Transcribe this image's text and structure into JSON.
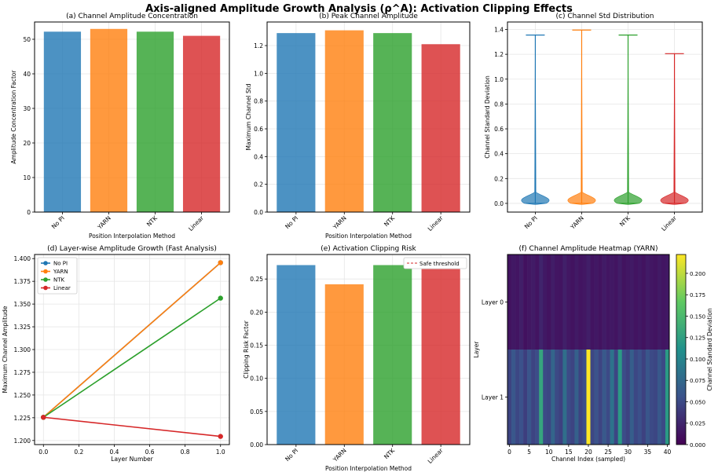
{
  "figure_title": "Axis-aligned Amplitude Growth Analysis (ρ^A): Activation Clipping Effects",
  "colors": {
    "No PI": "#1f77b4",
    "YARN": "#ff7f0e",
    "NTK": "#2ca02c",
    "Linear": "#d62728"
  },
  "chart_data": [
    {
      "id": "a",
      "type": "bar",
      "title": "(a) Channel Amplitude Concentration",
      "xlabel": "Position Interpolation Method",
      "ylabel": "Amplitude Concentration Factor",
      "categories": [
        "No PI",
        "YARN",
        "NTK",
        "Linear"
      ],
      "values": [
        52.2,
        53.0,
        52.2,
        51.0
      ],
      "ylim": [
        0,
        55
      ],
      "yticks": [
        0,
        10,
        20,
        30,
        40,
        50
      ],
      "ytick_labels": [
        "0",
        "10",
        "20",
        "30",
        "40",
        "50"
      ]
    },
    {
      "id": "b",
      "type": "bar",
      "title": "(b) Peak Channel Amplitude",
      "xlabel": "Position Interpolation Method",
      "ylabel": "Maximum Channel Std",
      "categories": [
        "No PI",
        "YARN",
        "NTK",
        "Linear"
      ],
      "values": [
        1.29,
        1.31,
        1.29,
        1.21
      ],
      "ylim": [
        0,
        1.37
      ],
      "yticks": [
        0,
        0.2,
        0.4,
        0.6,
        0.8,
        1.0,
        1.2
      ],
      "ytick_labels": [
        "0.0",
        "0.2",
        "0.4",
        "0.6",
        "0.8",
        "1.0",
        "1.2"
      ]
    },
    {
      "id": "c",
      "type": "violin",
      "title": "(c) Channel Std Distribution",
      "ylabel": "Channel Standard Deviation",
      "categories": [
        "No PI",
        "YARN",
        "NTK",
        "Linear"
      ],
      "max_values": [
        1.355,
        1.395,
        1.355,
        1.205
      ],
      "min_values": [
        0.0,
        0.0,
        0.0,
        0.0
      ],
      "median_values": [
        0.035,
        0.035,
        0.035,
        0.035
      ],
      "ylim": [
        -0.07,
        1.46
      ],
      "yticks": [
        0,
        0.2,
        0.4,
        0.6,
        0.8,
        1.0,
        1.2,
        1.4
      ],
      "ytick_labels": [
        "0.0",
        "0.2",
        "0.4",
        "0.6",
        "0.8",
        "1.0",
        "1.2",
        "1.4"
      ]
    },
    {
      "id": "d",
      "type": "line",
      "title": "(d) Layer-wise Amplitude Growth (Fast Analysis)",
      "xlabel": "Layer Number",
      "ylabel": "Maximum Channel Amplitude",
      "x": [
        0,
        1
      ],
      "series": [
        {
          "name": "No PI",
          "values": [
            1.2255,
            1.3955
          ]
        },
        {
          "name": "YARN",
          "values": [
            1.2255,
            1.3955
          ]
        },
        {
          "name": "NTK",
          "values": [
            1.2255,
            1.3565
          ]
        },
        {
          "name": "Linear",
          "values": [
            1.2255,
            1.2045
          ]
        }
      ],
      "xlim": [
        -0.05,
        1.05
      ],
      "ylim": [
        1.1955,
        1.4045
      ],
      "xticks": [
        0,
        0.2,
        0.4,
        0.6,
        0.8,
        1.0
      ],
      "xtick_labels": [
        "0.0",
        "0.2",
        "0.4",
        "0.6",
        "0.8",
        "1.0"
      ],
      "yticks": [
        1.2,
        1.225,
        1.25,
        1.275,
        1.3,
        1.325,
        1.35,
        1.375,
        1.4
      ],
      "ytick_labels": [
        "1.200",
        "1.225",
        "1.250",
        "1.275",
        "1.300",
        "1.325",
        "1.350",
        "1.375",
        "1.400"
      ],
      "legend": "top-left"
    },
    {
      "id": "e",
      "type": "bar",
      "title": "(e) Activation Clipping Risk",
      "xlabel": "Position Interpolation Method",
      "ylabel": "Clipping Risk Factor",
      "categories": [
        "No PI",
        "YARN",
        "NTK",
        "Linear"
      ],
      "values": [
        0.271,
        0.242,
        0.271,
        0.265
      ],
      "ylim": [
        0,
        0.287
      ],
      "yticks": [
        0,
        0.05,
        0.1,
        0.15,
        0.2,
        0.25
      ],
      "ytick_labels": [
        "0.00",
        "0.05",
        "0.10",
        "0.15",
        "0.20",
        "0.25"
      ],
      "threshold_label": "Safe threshold",
      "legend": "top-right"
    },
    {
      "id": "f",
      "type": "heatmap",
      "title": "(f) Channel Amplitude Heatmap (YARN)",
      "xlabel": "Channel Index (sampled)",
      "ylabel": "Layer",
      "rows": [
        "Layer 0",
        "Layer 1"
      ],
      "xticks": [
        0,
        5,
        10,
        15,
        20,
        25,
        30,
        35,
        40
      ],
      "xtick_labels": [
        "0",
        "5",
        "10",
        "15",
        "20",
        "25",
        "30",
        "35",
        "40"
      ],
      "colorbar_label": "Channel Standard Deviation",
      "colorbar_ticks": [
        0,
        0.025,
        0.05,
        0.075,
        0.1,
        0.125,
        0.15,
        0.175,
        0.2
      ],
      "colorbar_tick_labels": [
        "0.000",
        "0.025",
        "0.050",
        "0.075",
        "0.100",
        "0.125",
        "0.150",
        "0.175",
        "0.200"
      ],
      "vmax": 0.222,
      "values": [
        [
          0.012,
          0.016,
          0.014,
          0.02,
          0.011,
          0.015,
          0.018,
          0.013,
          0.024,
          0.016,
          0.012,
          0.019,
          0.014,
          0.013,
          0.021,
          0.015,
          0.012,
          0.017,
          0.013,
          0.015,
          0.02,
          0.013,
          0.016,
          0.012,
          0.018,
          0.014,
          0.016,
          0.013,
          0.019,
          0.012,
          0.015,
          0.017,
          0.013,
          0.016,
          0.012,
          0.018,
          0.015,
          0.013,
          0.017,
          0.014,
          0.016
        ],
        [
          0.045,
          0.06,
          0.048,
          0.055,
          0.042,
          0.058,
          0.046,
          0.052,
          0.13,
          0.05,
          0.047,
          0.072,
          0.049,
          0.044,
          0.08,
          0.051,
          0.046,
          0.068,
          0.045,
          0.053,
          0.222,
          0.048,
          0.056,
          0.046,
          0.062,
          0.05,
          0.085,
          0.047,
          0.12,
          0.052,
          0.045,
          0.066,
          0.048,
          0.054,
          0.044,
          0.059,
          0.05,
          0.047,
          0.061,
          0.049,
          0.12
        ]
      ]
    }
  ]
}
